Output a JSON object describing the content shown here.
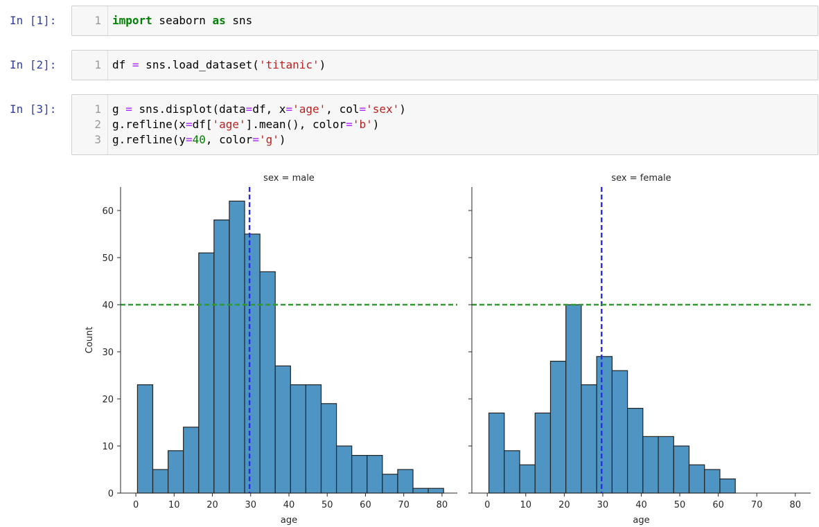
{
  "cells": [
    {
      "prompt": "In [1]:",
      "lines": [
        {
          "no": "1",
          "tokens": [
            {
              "t": "import",
              "c": "kw"
            },
            {
              "t": " seaborn ",
              "c": ""
            },
            {
              "t": "as",
              "c": "kw"
            },
            {
              "t": " sns",
              "c": ""
            }
          ]
        }
      ]
    },
    {
      "prompt": "In [2]:",
      "lines": [
        {
          "no": "1",
          "tokens": [
            {
              "t": "df ",
              "c": ""
            },
            {
              "t": "=",
              "c": "op"
            },
            {
              "t": " sns.load_dataset(",
              "c": ""
            },
            {
              "t": "'titanic'",
              "c": "str"
            },
            {
              "t": ")",
              "c": ""
            }
          ]
        }
      ]
    },
    {
      "prompt": "In [3]:",
      "lines": [
        {
          "no": "1",
          "tokens": [
            {
              "t": "g ",
              "c": ""
            },
            {
              "t": "=",
              "c": "op"
            },
            {
              "t": " sns.displot(data",
              "c": ""
            },
            {
              "t": "=",
              "c": "op"
            },
            {
              "t": "df, x",
              "c": ""
            },
            {
              "t": "=",
              "c": "op"
            },
            {
              "t": "'age'",
              "c": "str"
            },
            {
              "t": ", col",
              "c": ""
            },
            {
              "t": "=",
              "c": "op"
            },
            {
              "t": "'sex'",
              "c": "str"
            },
            {
              "t": ")",
              "c": ""
            }
          ]
        },
        {
          "no": "2",
          "tokens": [
            {
              "t": "g.refline(x",
              "c": ""
            },
            {
              "t": "=",
              "c": "op"
            },
            {
              "t": "df[",
              "c": ""
            },
            {
              "t": "'age'",
              "c": "str"
            },
            {
              "t": "].mean(), color",
              "c": ""
            },
            {
              "t": "=",
              "c": "op"
            },
            {
              "t": "'b'",
              "c": "str"
            },
            {
              "t": ")",
              "c": ""
            }
          ]
        },
        {
          "no": "3",
          "tokens": [
            {
              "t": "g.refline(y",
              "c": ""
            },
            {
              "t": "=",
              "c": "op"
            },
            {
              "t": "40",
              "c": "num"
            },
            {
              "t": ", color",
              "c": ""
            },
            {
              "t": "=",
              "c": "op"
            },
            {
              "t": "'g'",
              "c": "str"
            },
            {
              "t": ")",
              "c": ""
            }
          ]
        }
      ]
    }
  ],
  "colors": {
    "bar": "#4f95c3",
    "edge": "#222222",
    "vline": "#2a2aee",
    "hline": "#2f9a2f"
  },
  "chart_data": [
    {
      "type": "bar",
      "title": "sex = male",
      "xlabel": "age",
      "ylabel": "Count",
      "bin_edges": [
        0.42,
        4.42,
        8.42,
        12.42,
        16.42,
        20.42,
        24.42,
        28.42,
        32.42,
        36.42,
        40.42,
        44.42,
        48.42,
        52.42,
        56.42,
        60.42,
        64.42,
        68.42,
        72.42,
        76.42,
        80.42
      ],
      "values": [
        23,
        5,
        9,
        14,
        51,
        58,
        62,
        55,
        47,
        27,
        23,
        23,
        19,
        10,
        8,
        8,
        4,
        5,
        1,
        1
      ],
      "xlim": [
        -4,
        84
      ],
      "ylim": [
        0,
        65
      ],
      "xticks": [
        0,
        10,
        20,
        30,
        40,
        50,
        60,
        70,
        80
      ],
      "yticks": [
        0,
        10,
        20,
        30,
        40,
        50,
        60
      ],
      "refline_x": 29.7,
      "refline_y": 40,
      "grid": false
    },
    {
      "type": "bar",
      "title": "sex = female",
      "xlabel": "age",
      "ylabel": "",
      "bin_edges": [
        0.42,
        4.42,
        8.42,
        12.42,
        16.42,
        20.42,
        24.42,
        28.42,
        32.42,
        36.42,
        40.42,
        44.42,
        48.42,
        52.42,
        56.42,
        60.42,
        64.42
      ],
      "values": [
        17,
        9,
        6,
        17,
        28,
        40,
        23,
        29,
        26,
        18,
        12,
        12,
        10,
        6,
        5,
        3
      ],
      "xlim": [
        -4,
        84
      ],
      "ylim": [
        0,
        65
      ],
      "xticks": [
        0,
        10,
        20,
        30,
        40,
        50,
        60,
        70,
        80
      ],
      "yticks": [
        0,
        10,
        20,
        30,
        40,
        50,
        60
      ],
      "refline_x": 29.7,
      "refline_y": 40,
      "grid": false
    }
  ]
}
